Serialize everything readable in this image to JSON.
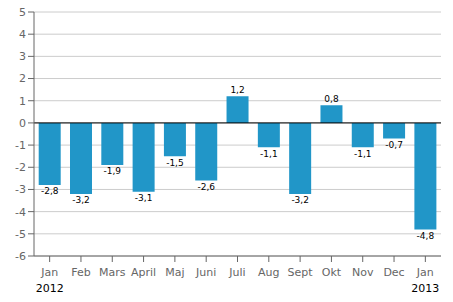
{
  "chart_data": {
    "type": "bar",
    "categories": [
      "Jan",
      "Feb",
      "Mars",
      "April",
      "Maj",
      "Juni",
      "Juli",
      "Aug",
      "Sept",
      "Okt",
      "Nov",
      "Dec",
      "Jan"
    ],
    "values": [
      -2.8,
      -3.2,
      -1.9,
      -3.1,
      -1.5,
      -2.6,
      1.2,
      -1.1,
      -3.2,
      0.8,
      -1.1,
      -0.7,
      -4.8
    ],
    "value_labels": [
      "-2,8",
      "-3,2",
      "-1,9",
      "-3,1",
      "-1,5",
      "-2,6",
      "1,2",
      "-1,1",
      "-3,2",
      "0,8",
      "-1,1",
      "-0,7",
      "-4,8"
    ],
    "data_labels": true,
    "color": "#2196C8",
    "ylim": [
      -6,
      5
    ],
    "yticks": [
      -6,
      -5,
      -4,
      -3,
      -2,
      -1,
      0,
      1,
      2,
      3,
      4,
      5
    ],
    "grid": true,
    "annotations": [
      "2012",
      "2013"
    ]
  }
}
